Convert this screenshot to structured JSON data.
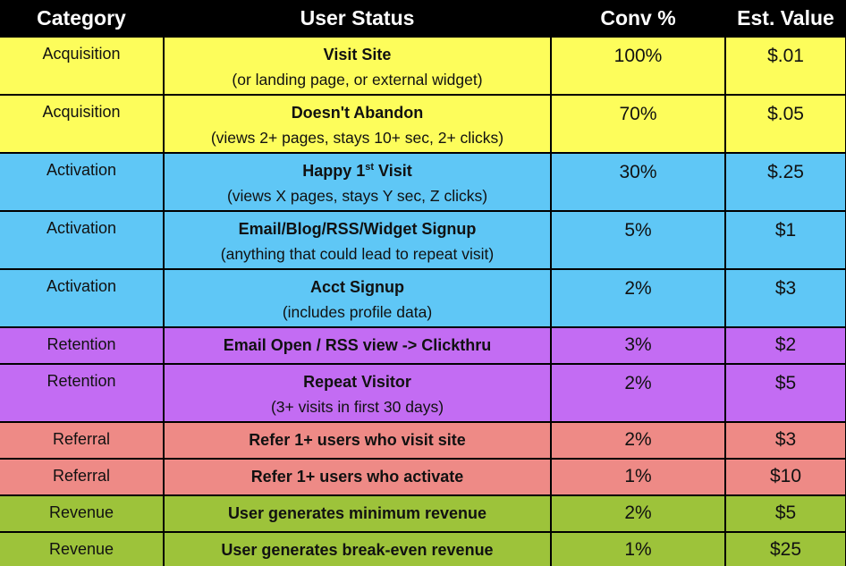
{
  "headers": {
    "category": "Category",
    "status": "User Status",
    "conv": "Conv %",
    "value": "Est. Value"
  },
  "colors": {
    "acquisition": "#fdfd5b",
    "activation": "#5fc7f6",
    "retention": "#c36cf3",
    "referral": "#ee8a86",
    "revenue": "#9dc33a"
  },
  "rows": [
    {
      "category": "Acquisition",
      "status": "Visit Site",
      "sub": "(or landing page, or external widget)",
      "conv": "100%",
      "value": "$.01"
    },
    {
      "category": "Acquisition",
      "status": "Doesn't Abandon",
      "sub": "(views 2+ pages, stays 10+ sec, 2+ clicks)",
      "conv": "70%",
      "value": "$.05"
    },
    {
      "category": "Activation",
      "status_pre": "Happy 1",
      "status_sup": "st",
      "status_post": " Visit",
      "sub": "(views X pages, stays Y sec, Z clicks)",
      "conv": "30%",
      "value": "$.25"
    },
    {
      "category": "Activation",
      "status": "Email/Blog/RSS/Widget Signup",
      "sub": "(anything that could lead to repeat visit)",
      "conv": "5%",
      "value": "$1"
    },
    {
      "category": "Activation",
      "status": "Acct Signup",
      "sub": "(includes profile data)",
      "conv": "2%",
      "value": "$3"
    },
    {
      "category": "Retention",
      "status": "Email Open / RSS view -> Clickthru",
      "conv": "3%",
      "value": "$2"
    },
    {
      "category": "Retention",
      "status": "Repeat Visitor",
      "sub": "(3+ visits in first 30 days)",
      "conv": "2%",
      "value": "$5"
    },
    {
      "category": "Referral",
      "status": "Refer 1+ users who visit site",
      "conv": "2%",
      "value": "$3"
    },
    {
      "category": "Referral",
      "status": "Refer 1+ users who activate",
      "conv": "1%",
      "value": "$10"
    },
    {
      "category": "Revenue",
      "status": "User generates minimum revenue",
      "conv": "2%",
      "value": "$5"
    },
    {
      "category": "Revenue",
      "status": "User generates break-even revenue",
      "conv": "1%",
      "value": "$25"
    }
  ]
}
